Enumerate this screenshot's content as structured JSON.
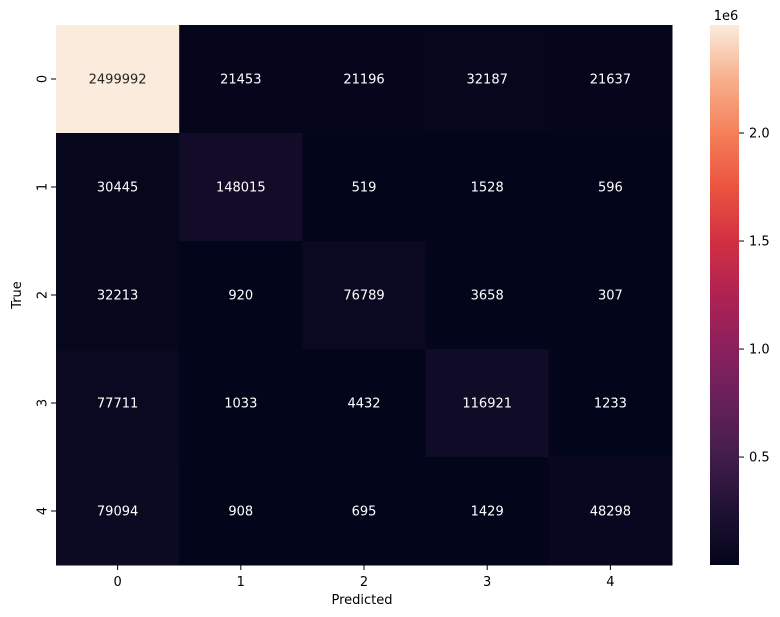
{
  "chart_data": {
    "type": "heatmap",
    "title": "",
    "xlabel": "Predicted",
    "ylabel": "True",
    "x_categories": [
      "0",
      "1",
      "2",
      "3",
      "4"
    ],
    "y_categories": [
      "0",
      "1",
      "2",
      "3",
      "4"
    ],
    "values": [
      [
        2499992,
        21453,
        21196,
        32187,
        21637
      ],
      [
        30445,
        148015,
        519,
        1528,
        596
      ],
      [
        32213,
        920,
        76789,
        3658,
        307
      ],
      [
        77711,
        1033,
        4432,
        116921,
        1233
      ],
      [
        79094,
        908,
        695,
        1429,
        48298
      ]
    ],
    "colormap": "rocket",
    "colorbar": {
      "range": [
        307,
        2499992
      ],
      "ticks": [
        0.5,
        1.0,
        1.5,
        2.0
      ],
      "tick_labels": [
        "0.5",
        "1.0",
        "1.5",
        "2.0"
      ],
      "scale_label": "1e6",
      "scale_factor": 1000000
    },
    "annotation_colors": {
      "dark_cells": "#ffffff",
      "light_cells": "#262626"
    },
    "grid": false,
    "legend": "colorbar-right"
  }
}
